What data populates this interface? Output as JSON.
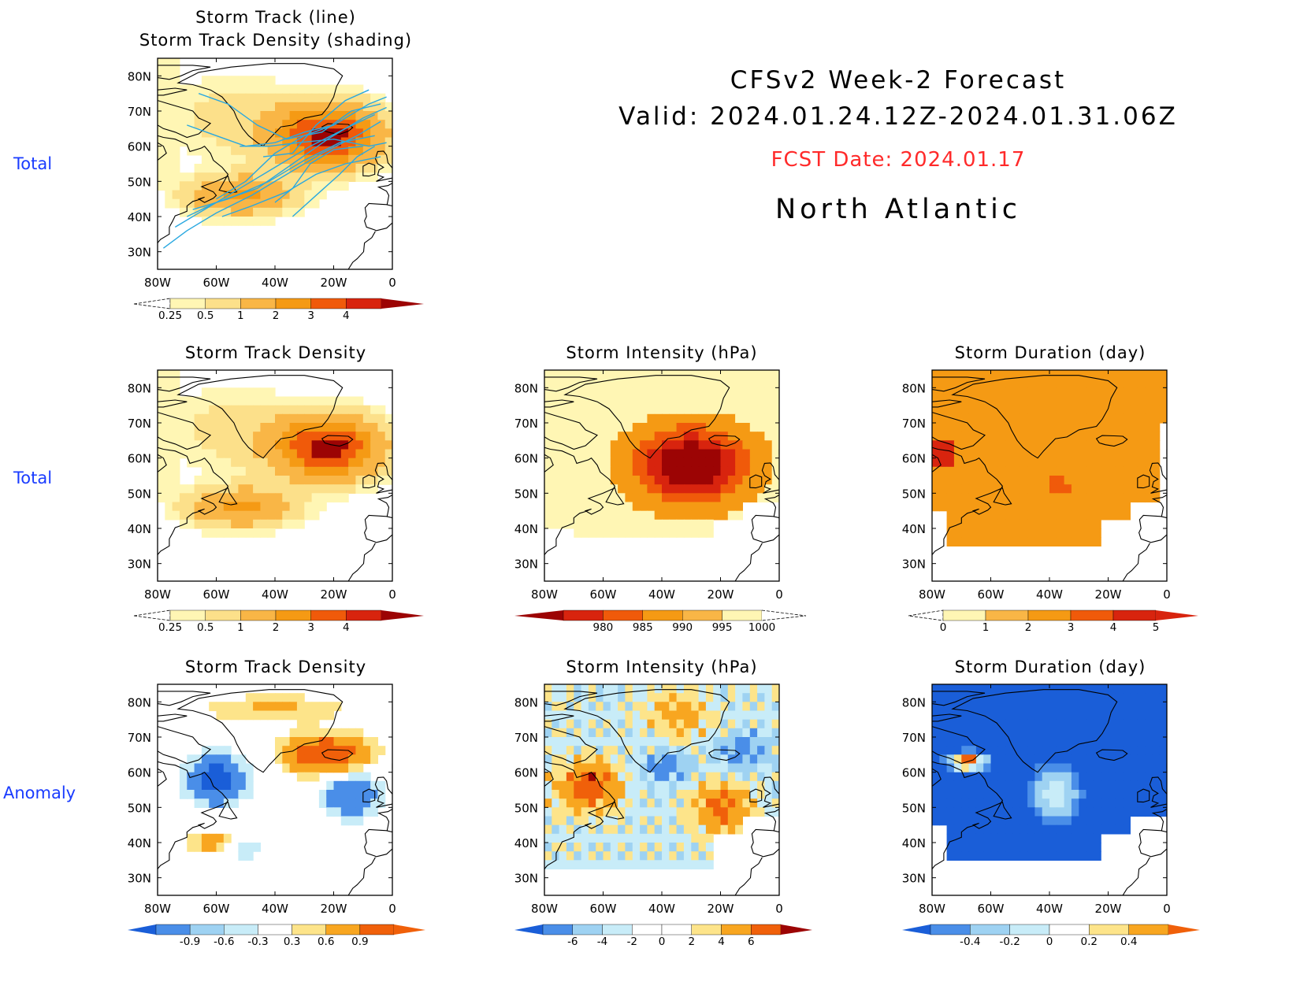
{
  "header": {
    "title": "CFSv2 Week-2 Forecast",
    "valid": "Valid: 2024.01.24.12Z-2024.01.31.06Z",
    "fcst_date": "FCST Date: 2024.01.17",
    "region": "North Atlantic"
  },
  "row_labels": [
    "Total",
    "Total",
    "Anomaly"
  ],
  "axes": {
    "lat_ticks": [
      "80N",
      "70N",
      "60N",
      "50N",
      "40N",
      "30N"
    ],
    "lon_ticks": [
      "80W",
      "60W",
      "40W",
      "20W",
      "0"
    ],
    "lat_range": [
      25,
      85
    ],
    "lon_range": [
      -80,
      0
    ]
  },
  "colors": {
    "row_label": "#1a3cff",
    "fcst_date": "#ff2a2a",
    "track_line": "#29a8e0",
    "total_scale": [
      "#fff6b4",
      "#fce08a",
      "#f9b646",
      "#f59a14",
      "#f05a0a",
      "#d8240e",
      "#9c0404"
    ],
    "anomaly_scale": [
      "#1a5ed8",
      "#4a8ee8",
      "#9ed2f2",
      "#c8ecf8",
      "#ffffff",
      "#fde48a",
      "#f8a620",
      "#f0600a",
      "#c01808"
    ]
  },
  "chart_data": [
    {
      "id": "track-lines",
      "type": "heatmap",
      "title_line1": "Storm Track (line)",
      "title_line2": "Storm Track Density (shading)",
      "colorbar_labels": [
        "0.25",
        "0.5",
        "1",
        "2",
        "3",
        "4"
      ],
      "max_value": 4.5,
      "hotspot": {
        "lon": -22,
        "lat": 63
      },
      "tracks": [
        [
          [
            -78,
            31
          ],
          [
            -70,
            36
          ],
          [
            -60,
            41
          ],
          [
            -48,
            46
          ],
          [
            -36,
            52
          ],
          [
            -24,
            58
          ],
          [
            -12,
            63
          ],
          [
            -4,
            67
          ]
        ],
        [
          [
            -74,
            37
          ],
          [
            -64,
            42
          ],
          [
            -52,
            48
          ],
          [
            -40,
            54
          ],
          [
            -28,
            60
          ],
          [
            -16,
            65
          ],
          [
            -6,
            69
          ]
        ],
        [
          [
            -70,
            40
          ],
          [
            -60,
            44
          ],
          [
            -46,
            48
          ],
          [
            -34,
            55
          ],
          [
            -22,
            62
          ],
          [
            -10,
            68
          ],
          [
            -2,
            71
          ]
        ],
        [
          [
            -68,
            42
          ],
          [
            -56,
            45
          ],
          [
            -42,
            50
          ],
          [
            -30,
            56
          ],
          [
            -18,
            61
          ],
          [
            -6,
            63
          ]
        ],
        [
          [
            -60,
            45
          ],
          [
            -50,
            50
          ],
          [
            -40,
            58
          ],
          [
            -30,
            63
          ],
          [
            -20,
            66
          ],
          [
            -8,
            72
          ],
          [
            -2,
            74
          ]
        ],
        [
          [
            -66,
            75
          ],
          [
            -56,
            72
          ],
          [
            -46,
            66
          ],
          [
            -36,
            62
          ],
          [
            -24,
            64
          ],
          [
            -14,
            70
          ],
          [
            -4,
            72
          ]
        ],
        [
          [
            -52,
            60
          ],
          [
            -42,
            60
          ],
          [
            -32,
            61
          ],
          [
            -20,
            62
          ],
          [
            -8,
            60
          ],
          [
            -2,
            61
          ]
        ],
        [
          [
            -44,
            57
          ],
          [
            -34,
            58
          ],
          [
            -26,
            66
          ],
          [
            -16,
            73
          ],
          [
            -8,
            76
          ]
        ],
        [
          [
            -58,
            40
          ],
          [
            -48,
            43
          ],
          [
            -36,
            47
          ],
          [
            -26,
            52
          ],
          [
            -16,
            55
          ],
          [
            -4,
            57
          ]
        ],
        [
          [
            -34,
            40
          ],
          [
            -26,
            46
          ],
          [
            -18,
            52
          ],
          [
            -12,
            57
          ],
          [
            -6,
            60
          ]
        ],
        [
          [
            -70,
            66
          ],
          [
            -60,
            63
          ],
          [
            -50,
            60
          ],
          [
            -40,
            61
          ],
          [
            -30,
            64
          ],
          [
            -20,
            66
          ]
        ],
        [
          [
            -40,
            44
          ],
          [
            -34,
            48
          ],
          [
            -28,
            55
          ],
          [
            -20,
            59
          ],
          [
            -10,
            60
          ]
        ]
      ]
    },
    {
      "id": "density-total",
      "type": "heatmap",
      "title": "Storm Track Density",
      "colorbar_labels": [
        "0.25",
        "0.5",
        "1",
        "2",
        "3",
        "4"
      ],
      "max_value": 4.5,
      "hotspot": {
        "lon": -22,
        "lat": 63
      }
    },
    {
      "id": "intensity-total",
      "type": "heatmap",
      "title": "Storm Intensity (hPa)",
      "colorbar_labels": [
        "980",
        "985",
        "990",
        "995",
        "1000"
      ],
      "core_value": 978,
      "edge_value": 1002,
      "hotspot": {
        "lon": -30,
        "lat": 58
      }
    },
    {
      "id": "duration-total",
      "type": "heatmap",
      "title": "Storm Duration (day)",
      "colorbar_labels": [
        "0",
        "1",
        "2",
        "3",
        "4",
        "5"
      ],
      "typical_value": 2.2,
      "peak_value": 3.1,
      "hotspot": {
        "lon": -37,
        "lat": 52
      }
    },
    {
      "id": "density-anomaly",
      "type": "heatmap",
      "title": "Storm Track Density",
      "colorbar_labels": [
        "-0.9",
        "-0.6",
        "-0.3",
        "0.3",
        "0.6",
        "0.9"
      ],
      "positive_center": {
        "lon": -22,
        "lat": 65,
        "value": 1.0
      },
      "negative_centers": [
        {
          "lon": -60,
          "lat": 58,
          "value": -0.8
        },
        {
          "lon": -14,
          "lat": 54,
          "value": -0.6
        }
      ]
    },
    {
      "id": "intensity-anomaly",
      "type": "heatmap",
      "title": "Storm Intensity (hPa)",
      "colorbar_labels": [
        "-6",
        "-4",
        "-2",
        "0",
        "2",
        "4",
        "6"
      ],
      "positive_centers": [
        {
          "lon": -65,
          "lat": 56,
          "value": 6
        },
        {
          "lon": -20,
          "lat": 50,
          "value": 5
        },
        {
          "lon": -35,
          "lat": 76,
          "value": 3
        }
      ],
      "negative_centers": [
        {
          "lon": -38,
          "lat": 62,
          "value": -3
        },
        {
          "lon": -12,
          "lat": 66,
          "value": -3
        }
      ]
    },
    {
      "id": "duration-anomaly",
      "type": "heatmap",
      "title": "Storm Duration (day)",
      "colorbar_labels": [
        "-0.4",
        "-0.2",
        "0",
        "0.2",
        "0.4"
      ],
      "background_value": -0.42,
      "positive_center": {
        "lon": -68,
        "lat": 63,
        "value": 0.45
      },
      "neutral_center": {
        "lon": -38,
        "lat": 54,
        "value": 0.05
      }
    }
  ]
}
